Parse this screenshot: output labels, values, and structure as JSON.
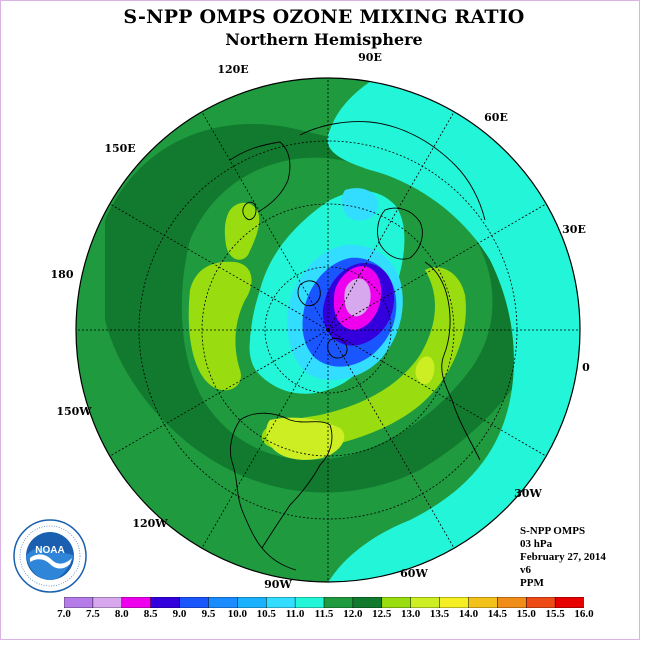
{
  "header": {
    "title": "S-NPP OMPS OZONE MIXING RATIO",
    "subtitle": "Northern Hemisphere"
  },
  "map": {
    "longitude_labels": [
      "90E",
      "60E",
      "30E",
      "0",
      "30W",
      "60W",
      "90W",
      "120W",
      "150W",
      "180",
      "150E",
      "120E"
    ]
  },
  "info": {
    "instrument": "S-NPP OMPS",
    "level": "03 hPa",
    "date": "February 27, 2014",
    "version": "v6",
    "units": "PPM"
  },
  "colorbar": {
    "labels": [
      "7.0",
      "7.5",
      "8.0",
      "8.5",
      "9.0",
      "9.5",
      "10.0",
      "10.5",
      "11.0",
      "11.5",
      "12.0",
      "12.5",
      "13.0",
      "13.5",
      "14.0",
      "14.5",
      "15.0",
      "15.5",
      "16.0"
    ],
    "colors": [
      "#b57be8",
      "#d7a8ee",
      "#ee00ee",
      "#3300dd",
      "#1a56ff",
      "#1b8cff",
      "#1ab2ff",
      "#33ddff",
      "#22f5d8",
      "#1f9a3f",
      "#117a2e",
      "#99dd11",
      "#ccee22",
      "#f5ee22",
      "#f2c11a",
      "#f08c18",
      "#ee4a16",
      "#e60000",
      "#8a5a3a"
    ]
  },
  "logo": {
    "text": "NOAA",
    "ring_text": "NATIONAL OCEANIC AND ATMOSPHERIC ADMINISTRATION U.S. DEPARTMENT OF COMMERCE"
  }
}
